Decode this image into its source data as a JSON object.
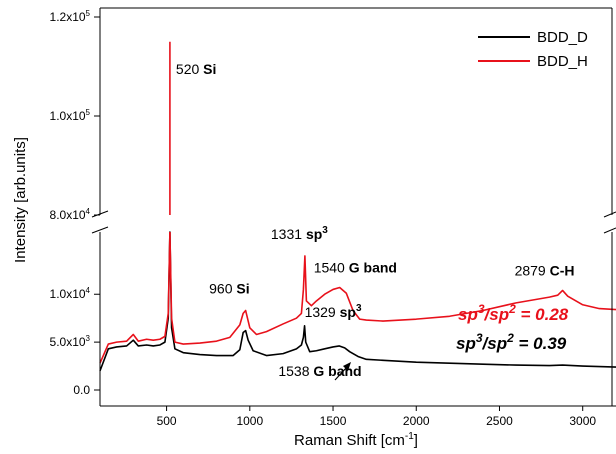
{
  "chart_data": {
    "type": "line",
    "xlabel": "Raman Shift [cm",
    "xlabel_sup": "-1",
    "xlabel_close": "]",
    "ylabel": "Intensity [arb.units]",
    "xlim": [
      100,
      3200
    ],
    "y_axis": {
      "broken": true,
      "lower_range": [
        0,
        16500
      ],
      "upper_range": [
        80000,
        120000
      ]
    },
    "x_ticks": [
      {
        "value": 500,
        "label": "500"
      },
      {
        "value": 1000,
        "label": "1000"
      },
      {
        "value": 1500,
        "label": "1500"
      },
      {
        "value": 2000,
        "label": "2000"
      },
      {
        "value": 2500,
        "label": "2500"
      },
      {
        "value": 3000,
        "label": "3000"
      }
    ],
    "y_ticks": [
      {
        "value": 0,
        "mant": "0.0",
        "exp": ""
      },
      {
        "value": 5000,
        "mant": "5.0x10",
        "exp": "3"
      },
      {
        "value": 10000,
        "mant": "1.0x10",
        "exp": "4"
      },
      {
        "value": 80000,
        "mant": "8.0x10",
        "exp": "4"
      },
      {
        "value": 100000,
        "mant": "1.0x10",
        "exp": "5"
      },
      {
        "value": 120000,
        "mant": "1.2x10",
        "exp": "5"
      }
    ],
    "legend": {
      "position": "top-right"
    },
    "series": [
      {
        "name": "BDD_D",
        "color": "#000000",
        "points": [
          [
            100,
            2000
          ],
          [
            150,
            4300
          ],
          [
            200,
            4500
          ],
          [
            260,
            4600
          ],
          [
            300,
            5200
          ],
          [
            330,
            4600
          ],
          [
            380,
            4700
          ],
          [
            420,
            4600
          ],
          [
            460,
            4700
          ],
          [
            490,
            5000
          ],
          [
            510,
            7500
          ],
          [
            520,
            16500
          ],
          [
            530,
            6500
          ],
          [
            550,
            4300
          ],
          [
            600,
            3900
          ],
          [
            700,
            3700
          ],
          [
            800,
            3600
          ],
          [
            900,
            3600
          ],
          [
            940,
            4200
          ],
          [
            960,
            6000
          ],
          [
            975,
            6200
          ],
          [
            990,
            5200
          ],
          [
            1020,
            4100
          ],
          [
            1100,
            3600
          ],
          [
            1200,
            3800
          ],
          [
            1280,
            4300
          ],
          [
            1310,
            4700
          ],
          [
            1322,
            5500
          ],
          [
            1329,
            6700
          ],
          [
            1336,
            5000
          ],
          [
            1360,
            4000
          ],
          [
            1400,
            4100
          ],
          [
            1450,
            4300
          ],
          [
            1500,
            4500
          ],
          [
            1538,
            4600
          ],
          [
            1570,
            4400
          ],
          [
            1600,
            4000
          ],
          [
            1650,
            3500
          ],
          [
            1700,
            3200
          ],
          [
            1800,
            3100
          ],
          [
            2000,
            2900
          ],
          [
            2200,
            2800
          ],
          [
            2400,
            2700
          ],
          [
            2600,
            2600
          ],
          [
            2800,
            2550
          ],
          [
            2879,
            2600
          ],
          [
            3000,
            2500
          ],
          [
            3200,
            2400
          ]
        ]
      },
      {
        "name": "BDD_H",
        "color": "#e8111b",
        "points": [
          [
            100,
            2800
          ],
          [
            150,
            4800
          ],
          [
            200,
            5000
          ],
          [
            260,
            5100
          ],
          [
            300,
            5800
          ],
          [
            330,
            5100
          ],
          [
            380,
            5300
          ],
          [
            420,
            5200
          ],
          [
            460,
            5300
          ],
          [
            490,
            5600
          ],
          [
            510,
            8000
          ],
          [
            520,
            115000
          ],
          [
            530,
            7500
          ],
          [
            550,
            5000
          ],
          [
            600,
            4800
          ],
          [
            700,
            4900
          ],
          [
            800,
            5100
          ],
          [
            880,
            5500
          ],
          [
            940,
            6800
          ],
          [
            960,
            8000
          ],
          [
            975,
            8300
          ],
          [
            1000,
            6500
          ],
          [
            1040,
            5800
          ],
          [
            1100,
            6100
          ],
          [
            1200,
            6900
          ],
          [
            1280,
            7500
          ],
          [
            1310,
            8000
          ],
          [
            1322,
            10500
          ],
          [
            1331,
            14000
          ],
          [
            1340,
            9300
          ],
          [
            1370,
            8800
          ],
          [
            1400,
            9300
          ],
          [
            1450,
            10000
          ],
          [
            1500,
            10500
          ],
          [
            1540,
            10700
          ],
          [
            1580,
            10100
          ],
          [
            1620,
            8300
          ],
          [
            1660,
            7400
          ],
          [
            1700,
            7300
          ],
          [
            1800,
            7200
          ],
          [
            2000,
            7400
          ],
          [
            2200,
            7700
          ],
          [
            2400,
            8300
          ],
          [
            2600,
            9100
          ],
          [
            2800,
            9700
          ],
          [
            2850,
            9900
          ],
          [
            2879,
            10400
          ],
          [
            2910,
            9800
          ],
          [
            3000,
            8900
          ],
          [
            3100,
            8500
          ],
          [
            3200,
            8400
          ]
        ]
      }
    ],
    "annotations": [
      {
        "text": "520",
        "bold": "Si",
        "x": 520,
        "y": 115000
      },
      {
        "text": "960",
        "bold": "Si",
        "x": 960,
        "y": 8300
      },
      {
        "text": "1331",
        "bold": "sp",
        "sup": "3",
        "x": 1331,
        "y": 14000
      },
      {
        "text": "1540",
        "bold": "G band",
        "x": 1540,
        "y": 10700
      },
      {
        "text": "2879",
        "bold": "C-H",
        "x": 2879,
        "y": 10400
      },
      {
        "text": "1329",
        "bold": "sp",
        "sup": "3",
        "x": 1329,
        "y": 6700
      },
      {
        "text": "1538",
        "bold": "G band",
        "x": 1538,
        "y": 4600
      }
    ],
    "ratios": [
      {
        "series": "BDD_H",
        "value": "0.28"
      },
      {
        "series": "BDD_D",
        "value": "0.39"
      }
    ]
  }
}
